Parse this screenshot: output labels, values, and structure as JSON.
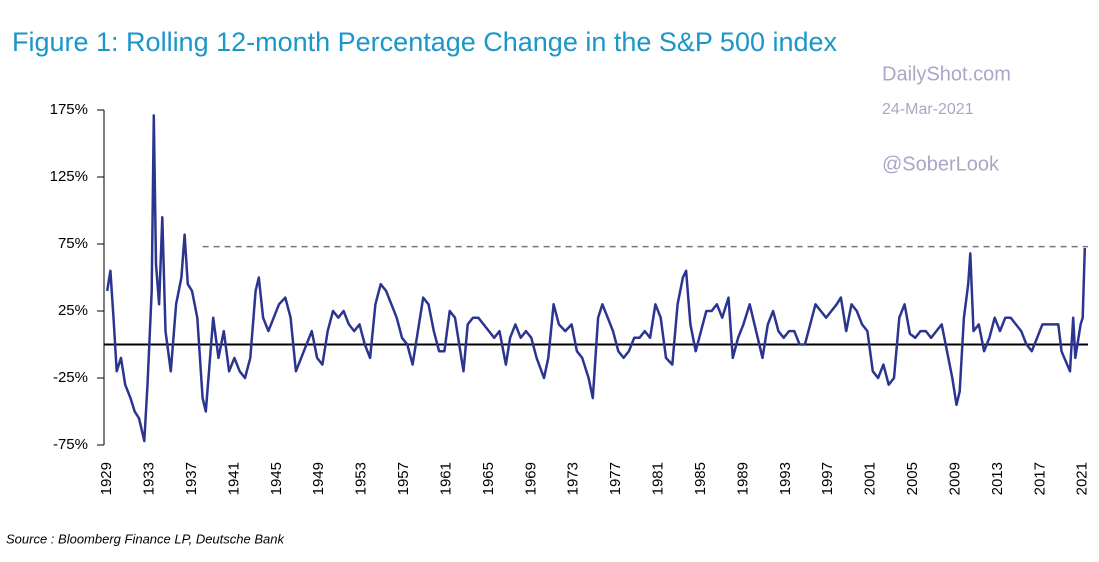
{
  "chart_data": {
    "type": "line",
    "title": "Figure 1: Rolling 12-month Percentage Change in the S&P 500 index",
    "source": "Source : Bloomberg Finance LP, Deutsche Bank",
    "annotations": [
      "DailyShot.com",
      "24-Mar-2021",
      "@SoberLook"
    ],
    "xlim": [
      1928.7,
      2021.5
    ],
    "xticks": [
      1929,
      1933,
      1937,
      1941,
      1945,
      1949,
      1953,
      1957,
      1961,
      1965,
      1969,
      1973,
      1977,
      1981,
      1985,
      1989,
      1993,
      1997,
      2001,
      2005,
      2009,
      2013,
      2017,
      2021
    ],
    "ylim": [
      -75,
      175
    ],
    "yticks": [
      {
        "value": -75,
        "label": "-75%"
      },
      {
        "value": -25,
        "label": "-25%"
      },
      {
        "value": 25,
        "label": "25%"
      },
      {
        "value": 75,
        "label": "75%"
      },
      {
        "value": 125,
        "label": "125%"
      },
      {
        "value": 175,
        "label": "175%"
      }
    ],
    "reference_line": {
      "value": 73,
      "x_start": 1938
    },
    "x": [
      1929,
      1929.3,
      1929.6,
      1929.9,
      1930.3,
      1930.7,
      1931.2,
      1931.6,
      1932,
      1932.5,
      1932.8,
      1933.2,
      1933.4,
      1933.6,
      1933.9,
      1934.2,
      1934.5,
      1935,
      1935.5,
      1936,
      1936.3,
      1936.6,
      1937,
      1937.5,
      1938,
      1938.3,
      1938.6,
      1939,
      1939.5,
      1940,
      1940.5,
      1941,
      1941.5,
      1942,
      1942.5,
      1943,
      1943.3,
      1943.7,
      1944.2,
      1944.7,
      1945.2,
      1945.8,
      1946.3,
      1946.8,
      1947.3,
      1947.8,
      1948.3,
      1948.8,
      1949.3,
      1949.8,
      1950.3,
      1950.8,
      1951.3,
      1951.8,
      1952.3,
      1952.8,
      1953.3,
      1953.8,
      1954.3,
      1954.8,
      1955.3,
      1955.8,
      1956.3,
      1956.8,
      1957.3,
      1957.8,
      1958.3,
      1958.8,
      1959.3,
      1959.8,
      1960.3,
      1960.8,
      1961.3,
      1961.8,
      1962.3,
      1962.6,
      1963,
      1963.5,
      1964,
      1964.5,
      1965,
      1965.5,
      1966,
      1966.6,
      1967,
      1967.5,
      1968,
      1968.5,
      1969,
      1969.5,
      1970.2,
      1970.6,
      1971.1,
      1971.6,
      1972.2,
      1972.8,
      1973.3,
      1973.8,
      1974.4,
      1974.8,
      1975.3,
      1975.7,
      1976.2,
      1976.7,
      1977.2,
      1977.7,
      1978.2,
      1978.7,
      1979.2,
      1979.7,
      1980.2,
      1980.7,
      1981.2,
      1981.7,
      1982.3,
      1982.8,
      1983.3,
      1983.6,
      1984,
      1984.5,
      1985,
      1985.5,
      1986,
      1986.5,
      1987,
      1987.6,
      1988,
      1988.5,
      1989,
      1989.6,
      1990.2,
      1990.8,
      1991.3,
      1991.8,
      1992.3,
      1992.8,
      1993.3,
      1993.8,
      1994.3,
      1994.8,
      1995.3,
      1995.8,
      1996.3,
      1996.8,
      1997.3,
      1997.8,
      1998.2,
      1998.7,
      1999.2,
      1999.7,
      2000.2,
      2000.7,
      2001.2,
      2001.7,
      2002.2,
      2002.7,
      2003.2,
      2003.7,
      2004.2,
      2004.7,
      2005.2,
      2005.7,
      2006.2,
      2006.7,
      2007.2,
      2007.7,
      2008.2,
      2008.7,
      2009.1,
      2009.4,
      2009.8,
      2010.2,
      2010.4,
      2010.7,
      2011.2,
      2011.7,
      2012.2,
      2012.7,
      2013.2,
      2013.7,
      2014.2,
      2014.7,
      2015.2,
      2015.7,
      2016.2,
      2016.7,
      2017.2,
      2017.7,
      2018.2,
      2018.7,
      2019,
      2019.8,
      2020.1,
      2020.3,
      2020.8,
      2021,
      2021.2
    ],
    "series": [
      {
        "color": "#2b3590",
        "values": [
          40,
          55,
          20,
          -20,
          -10,
          -30,
          -40,
          -50,
          -55,
          -72,
          -30,
          40,
          171,
          60,
          30,
          95,
          10,
          -20,
          30,
          50,
          82,
          45,
          40,
          20,
          -40,
          -50,
          -20,
          20,
          -10,
          10,
          -20,
          -10,
          -20,
          -25,
          -10,
          40,
          50,
          20,
          10,
          20,
          30,
          35,
          20,
          -20,
          -10,
          0,
          10,
          -10,
          -15,
          10,
          25,
          20,
          25,
          15,
          10,
          15,
          0,
          -10,
          30,
          45,
          40,
          30,
          20,
          5,
          0,
          -15,
          10,
          35,
          30,
          10,
          -5,
          -5,
          25,
          20,
          -5,
          -20,
          15,
          20,
          20,
          15,
          10,
          5,
          10,
          -15,
          5,
          15,
          5,
          10,
          5,
          -10,
          -25,
          -10,
          30,
          15,
          10,
          15,
          -5,
          -10,
          -25,
          -40,
          20,
          30,
          20,
          10,
          -5,
          -10,
          -5,
          5,
          5,
          10,
          5,
          30,
          20,
          -10,
          -15,
          30,
          50,
          55,
          15,
          -5,
          10,
          25,
          25,
          30,
          20,
          35,
          -10,
          5,
          15,
          30,
          10,
          -10,
          15,
          25,
          10,
          5,
          10,
          10,
          0,
          0,
          15,
          30,
          25,
          20,
          25,
          30,
          35,
          10,
          30,
          25,
          15,
          10,
          -20,
          -25,
          -15,
          -30,
          -25,
          20,
          30,
          8,
          5,
          10,
          10,
          5,
          10,
          15,
          -5,
          -25,
          -45,
          -35,
          20,
          45,
          68,
          10,
          15,
          -5,
          5,
          20,
          10,
          20,
          20,
          15,
          10,
          0,
          -5,
          5,
          15,
          15,
          15,
          15,
          -5,
          -20,
          20,
          -10,
          15,
          20,
          72
        ]
      }
    ]
  }
}
